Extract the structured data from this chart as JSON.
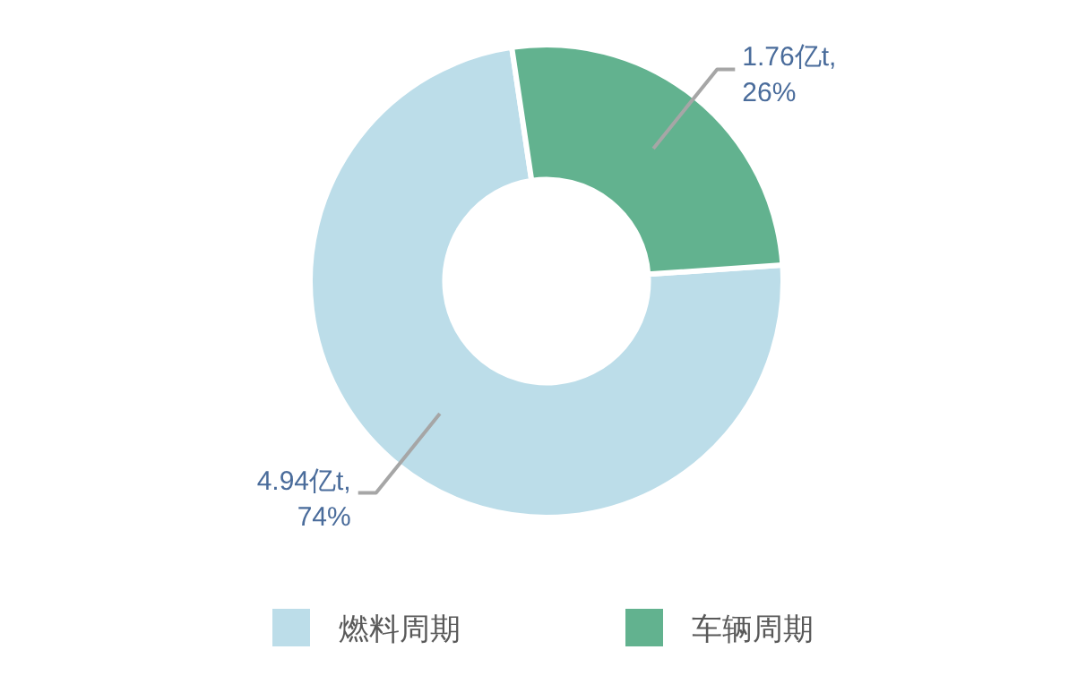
{
  "chart_data": {
    "type": "donut",
    "categories": [
      "燃料周期",
      "车辆周期"
    ],
    "values": [
      4.94,
      1.76
    ],
    "colors": [
      "#bcdde9",
      "#62b28f"
    ],
    "value_labels": [
      "4.94亿t,\n74%",
      "1.76亿t,\n26%"
    ],
    "legend": "bottom"
  }
}
